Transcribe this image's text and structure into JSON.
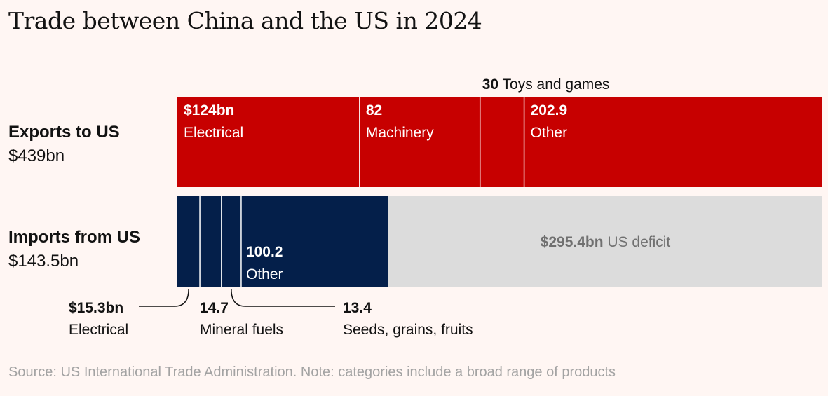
{
  "title": "Trade between China and the US in 2024",
  "colors": {
    "exports": "#c70000",
    "imports": "#041f4a",
    "deficit": "#dcdcdc",
    "divider": "#ffffff",
    "annotation": "#121212",
    "deficit_text": "#707070"
  },
  "rows": {
    "exports": {
      "label": "Exports to US",
      "total": "$439bn"
    },
    "imports": {
      "label": "Imports from US",
      "total": "$143.5bn"
    }
  },
  "source": "Source: US International Trade Administration. Note: categories include a broad range of products",
  "chart_data": {
    "type": "bar",
    "subtype": "stacked-horizontal",
    "xlim": [
      0,
      439
    ],
    "series": [
      {
        "name": "Exports to US",
        "total": 439,
        "segments": [
          {
            "value": 124,
            "value_label": "$124bn",
            "category": "Electrical",
            "label_mode": "inside"
          },
          {
            "value": 82,
            "value_label": "82",
            "category": "Machinery",
            "label_mode": "inside"
          },
          {
            "value": 30,
            "value_label": "30",
            "category": "Toys and games",
            "label_mode": "above"
          },
          {
            "value": 202.9,
            "value_label": "202.9",
            "category": "Other",
            "label_mode": "inside"
          }
        ]
      },
      {
        "name": "Imports from US",
        "total": 143.5,
        "segments": [
          {
            "value": 15.3,
            "value_label": "$15.3bn",
            "category": "Electrical",
            "label_mode": "callout-left"
          },
          {
            "value": 14.7,
            "value_label": "14.7",
            "category": "Mineral fuels",
            "label_mode": "callout-below"
          },
          {
            "value": 13.4,
            "value_label": "13.4",
            "category": "Seeds, grains, fruits",
            "label_mode": "callout-right"
          },
          {
            "value": 100.2,
            "value_label": "100.2",
            "category": "Other",
            "label_mode": "inside-bottom"
          }
        ],
        "remainder": {
          "value": 295.4,
          "value_label": "$295.4bn",
          "category": "US deficit"
        }
      }
    ]
  }
}
